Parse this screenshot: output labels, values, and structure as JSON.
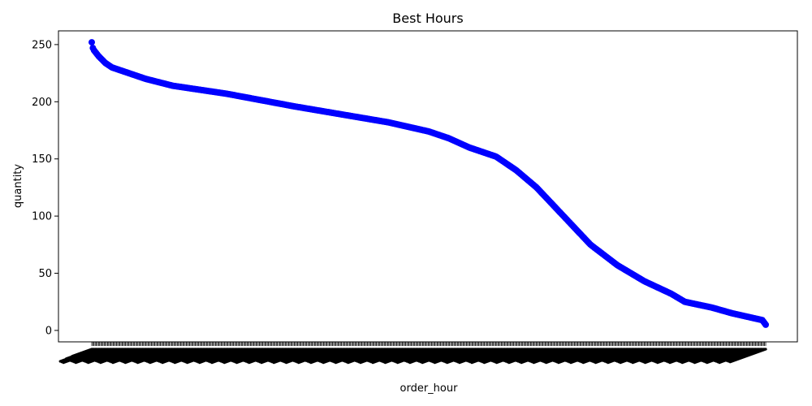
{
  "chart_data": {
    "type": "scatter",
    "title": "Best Hours",
    "xlabel": "order_hour",
    "ylabel": "quantity",
    "ylim": [
      -10,
      262
    ],
    "y_ticks": [
      0,
      50,
      100,
      150,
      200,
      250
    ],
    "grid": false,
    "x_tick_labels_legible": false,
    "point_count": 600,
    "marker_color": "#0000ff",
    "profile": {
      "position_fraction": [
        0,
        0.002,
        0.01,
        0.02,
        0.03,
        0.05,
        0.08,
        0.12,
        0.2,
        0.3,
        0.36,
        0.44,
        0.5,
        0.53,
        0.56,
        0.6,
        0.63,
        0.66,
        0.7,
        0.74,
        0.78,
        0.82,
        0.86,
        0.88,
        0.92,
        0.95,
        0.98,
        0.995,
        1.0
      ],
      "quantity": [
        252,
        246,
        240,
        234,
        230,
        226,
        220,
        214,
        207,
        196,
        190,
        182,
        174,
        168,
        160,
        152,
        140,
        125,
        100,
        75,
        57,
        43,
        32,
        25,
        20,
        15,
        11,
        9,
        5
      ]
    }
  }
}
